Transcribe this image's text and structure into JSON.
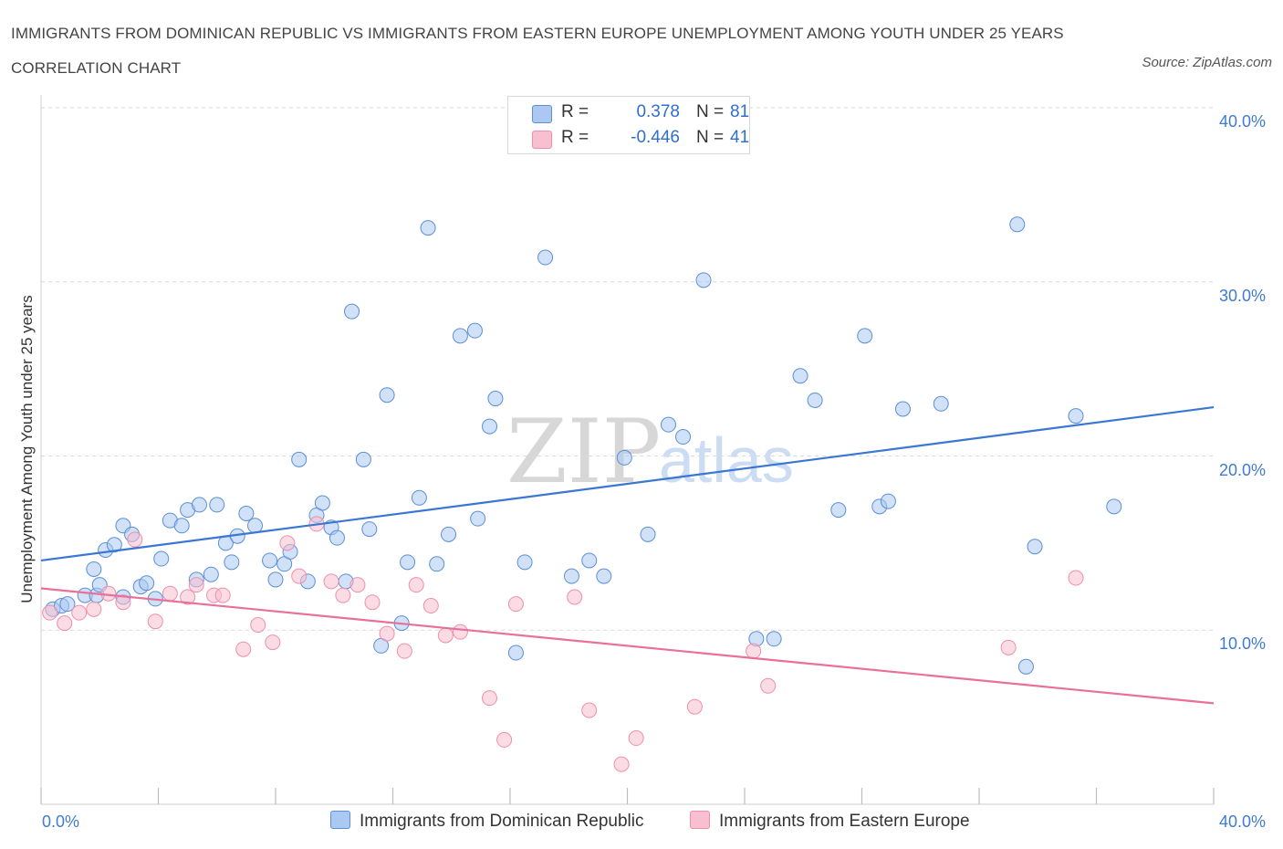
{
  "title": "IMMIGRANTS FROM DOMINICAN REPUBLIC VS IMMIGRANTS FROM EASTERN EUROPE UNEMPLOYMENT AMONG YOUTH UNDER 25 YEARS CORRELATION CHART",
  "source": "Source: ZipAtlas.com",
  "legend": {
    "r_label": "R =",
    "n_label": "N =",
    "series1": {
      "r": "0.378",
      "n": "81"
    },
    "series2": {
      "r": "-0.446",
      "n": "41"
    }
  },
  "watermark": {
    "zip": "ZIP",
    "atlas": "atlas"
  },
  "colors": {
    "blue_fill": "#aac8f2",
    "blue_stroke": "#5b8fd6",
    "blue_line": "#3a77d3",
    "pink_fill": "#f8bfd0",
    "pink_stroke": "#ee8fab",
    "pink_line": "#e8709a",
    "grid": "#d9d9d9",
    "tick_text": "#3f7bd1"
  },
  "chart_data": {
    "type": "scatter",
    "title": "IMMIGRANTS FROM DOMINICAN REPUBLIC VS IMMIGRANTS FROM EASTERN EUROPE UNEMPLOYMENT AMONG YOUTH UNDER 25 YEARS CORRELATION CHART",
    "xlabel": "",
    "ylabel": "Unemployment Among Youth under 25 years",
    "xlim": [
      0,
      40
    ],
    "ylim": [
      0,
      40
    ],
    "x_tick_labels": [
      "0.0%",
      "40.0%"
    ],
    "y_tick_values": [
      10,
      20,
      30,
      40
    ],
    "y_tick_labels": [
      "10.0%",
      "20.0%",
      "30.0%",
      "40.0%"
    ],
    "grid": true,
    "legend_position": "bottom-center",
    "series": [
      {
        "name": "Immigrants from Dominican Republic",
        "color": "#aac8f2",
        "trend": {
          "x": [
            0,
            40
          ],
          "y": [
            14.0,
            22.8
          ]
        },
        "points": [
          [
            0.4,
            11.2
          ],
          [
            0.7,
            11.4
          ],
          [
            0.9,
            11.5
          ],
          [
            1.5,
            12.0
          ],
          [
            1.8,
            13.5
          ],
          [
            1.9,
            12.0
          ],
          [
            2.0,
            12.6
          ],
          [
            2.2,
            14.6
          ],
          [
            2.5,
            14.9
          ],
          [
            2.8,
            11.9
          ],
          [
            2.8,
            16.0
          ],
          [
            3.1,
            15.5
          ],
          [
            3.4,
            12.5
          ],
          [
            3.6,
            12.7
          ],
          [
            3.9,
            11.8
          ],
          [
            4.1,
            14.1
          ],
          [
            4.4,
            16.3
          ],
          [
            4.8,
            16.0
          ],
          [
            5.0,
            16.9
          ],
          [
            5.3,
            12.9
          ],
          [
            5.4,
            17.2
          ],
          [
            5.8,
            13.2
          ],
          [
            6.0,
            17.2
          ],
          [
            6.3,
            15.0
          ],
          [
            6.5,
            13.9
          ],
          [
            6.7,
            15.4
          ],
          [
            7.0,
            16.7
          ],
          [
            7.3,
            16.0
          ],
          [
            7.8,
            14.0
          ],
          [
            8.0,
            12.9
          ],
          [
            8.3,
            13.8
          ],
          [
            8.5,
            14.5
          ],
          [
            8.8,
            19.8
          ],
          [
            9.1,
            12.8
          ],
          [
            9.4,
            16.6
          ],
          [
            9.6,
            17.3
          ],
          [
            9.9,
            15.9
          ],
          [
            10.1,
            15.3
          ],
          [
            10.4,
            12.8
          ],
          [
            10.6,
            28.3
          ],
          [
            11.0,
            19.8
          ],
          [
            11.2,
            15.8
          ],
          [
            11.6,
            9.1
          ],
          [
            11.8,
            23.5
          ],
          [
            12.3,
            10.4
          ],
          [
            12.5,
            13.9
          ],
          [
            12.9,
            17.6
          ],
          [
            13.2,
            33.1
          ],
          [
            13.5,
            13.8
          ],
          [
            13.9,
            15.5
          ],
          [
            14.3,
            26.9
          ],
          [
            14.8,
            27.2
          ],
          [
            14.9,
            16.4
          ],
          [
            15.3,
            21.7
          ],
          [
            15.5,
            23.3
          ],
          [
            16.2,
            8.7
          ],
          [
            16.5,
            13.9
          ],
          [
            17.2,
            31.4
          ],
          [
            18.1,
            13.1
          ],
          [
            18.7,
            14.0
          ],
          [
            19.2,
            13.1
          ],
          [
            19.9,
            19.9
          ],
          [
            20.7,
            15.5
          ],
          [
            21.4,
            21.8
          ],
          [
            21.9,
            21.1
          ],
          [
            22.6,
            30.1
          ],
          [
            24.4,
            9.5
          ],
          [
            25.0,
            9.5
          ],
          [
            25.9,
            24.6
          ],
          [
            26.4,
            23.2
          ],
          [
            27.2,
            16.9
          ],
          [
            28.1,
            26.9
          ],
          [
            28.6,
            17.1
          ],
          [
            28.9,
            17.4
          ],
          [
            29.4,
            22.7
          ],
          [
            30.7,
            23.0
          ],
          [
            33.3,
            33.3
          ],
          [
            33.6,
            7.9
          ],
          [
            33.9,
            14.8
          ],
          [
            35.3,
            22.3
          ],
          [
            36.6,
            17.1
          ]
        ]
      },
      {
        "name": "Immigrants from Eastern Europe",
        "color": "#f8bfd0",
        "trend": {
          "x": [
            0,
            40
          ],
          "y": [
            12.4,
            5.8
          ]
        },
        "points": [
          [
            0.3,
            11.0
          ],
          [
            0.8,
            10.4
          ],
          [
            1.3,
            11.0
          ],
          [
            1.8,
            11.2
          ],
          [
            2.3,
            12.1
          ],
          [
            2.8,
            11.6
          ],
          [
            3.2,
            15.2
          ],
          [
            3.9,
            10.5
          ],
          [
            4.4,
            12.1
          ],
          [
            5.0,
            11.9
          ],
          [
            5.3,
            12.6
          ],
          [
            5.9,
            12.0
          ],
          [
            6.2,
            12.0
          ],
          [
            6.9,
            8.9
          ],
          [
            7.4,
            10.3
          ],
          [
            7.9,
            9.3
          ],
          [
            8.4,
            15.0
          ],
          [
            8.8,
            13.1
          ],
          [
            9.4,
            16.1
          ],
          [
            9.9,
            12.8
          ],
          [
            10.3,
            12.0
          ],
          [
            10.8,
            12.6
          ],
          [
            11.3,
            11.6
          ],
          [
            11.8,
            9.8
          ],
          [
            12.4,
            8.8
          ],
          [
            12.8,
            12.6
          ],
          [
            13.3,
            11.4
          ],
          [
            13.8,
            9.7
          ],
          [
            14.3,
            9.9
          ],
          [
            15.3,
            6.1
          ],
          [
            15.8,
            3.7
          ],
          [
            16.2,
            11.5
          ],
          [
            18.2,
            11.9
          ],
          [
            18.7,
            5.4
          ],
          [
            19.8,
            2.3
          ],
          [
            20.3,
            3.8
          ],
          [
            22.3,
            5.6
          ],
          [
            24.3,
            8.8
          ],
          [
            24.8,
            6.8
          ],
          [
            33.0,
            9.0
          ],
          [
            35.3,
            13.0
          ]
        ]
      }
    ]
  }
}
